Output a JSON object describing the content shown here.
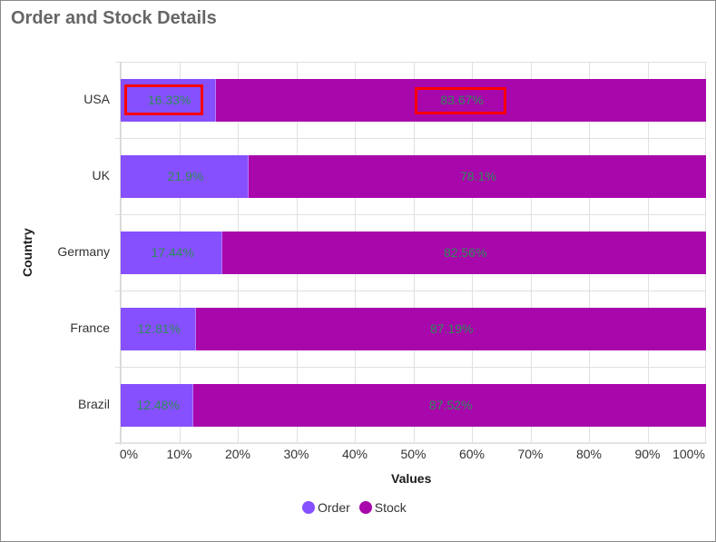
{
  "title": "Order and Stock Details",
  "colors": {
    "order": "#8650ff",
    "stock": "#a807ab",
    "data_label": "#2e8b57",
    "highlight": "#ff0000"
  },
  "axes": {
    "y_title": "Country",
    "x_title": "Values",
    "x_ticks": [
      "0%",
      "10%",
      "20%",
      "30%",
      "40%",
      "50%",
      "60%",
      "70%",
      "80%",
      "90%",
      "100%"
    ]
  },
  "legend": {
    "items": [
      {
        "label": "Order",
        "color": "#8650ff"
      },
      {
        "label": "Stock",
        "color": "#a807ab"
      }
    ]
  },
  "rows": [
    {
      "country": "USA",
      "order": 16.33,
      "stock": 83.67,
      "order_label": "16.33%",
      "stock_label": "83.67%"
    },
    {
      "country": "UK",
      "order": 21.9,
      "stock": 78.1,
      "order_label": "21.9%",
      "stock_label": "78.1%"
    },
    {
      "country": "Germany",
      "order": 17.44,
      "stock": 82.56,
      "order_label": "17.44%",
      "stock_label": "82.56%"
    },
    {
      "country": "France",
      "order": 12.81,
      "stock": 87.19,
      "order_label": "12.81%",
      "stock_label": "87.19%"
    },
    {
      "country": "Brazil",
      "order": 12.48,
      "stock": 87.52,
      "order_label": "12.48%",
      "stock_label": "87.52%"
    }
  ],
  "chart_data": {
    "type": "bar",
    "orientation": "horizontal",
    "stacking": "100%",
    "title": "Order and Stock Details",
    "xlabel": "Values",
    "ylabel": "Country",
    "categories": [
      "USA",
      "UK",
      "Germany",
      "France",
      "Brazil"
    ],
    "series": [
      {
        "name": "Order",
        "color": "#8650ff",
        "values": [
          16.33,
          21.9,
          17.44,
          12.81,
          12.48
        ]
      },
      {
        "name": "Stock",
        "color": "#a807ab",
        "values": [
          83.67,
          78.1,
          82.56,
          87.19,
          87.52
        ]
      }
    ],
    "xlim": [
      0,
      100
    ],
    "x_tick_labels": [
      "0%",
      "10%",
      "20%",
      "30%",
      "40%",
      "50%",
      "60%",
      "70%",
      "80%",
      "90%",
      "100%"
    ],
    "grid": true,
    "legend_position": "bottom",
    "annotations": [
      "Red highlight box around USA Order label 16.33%",
      "Red highlight box around USA Stock label 83.67%"
    ]
  }
}
